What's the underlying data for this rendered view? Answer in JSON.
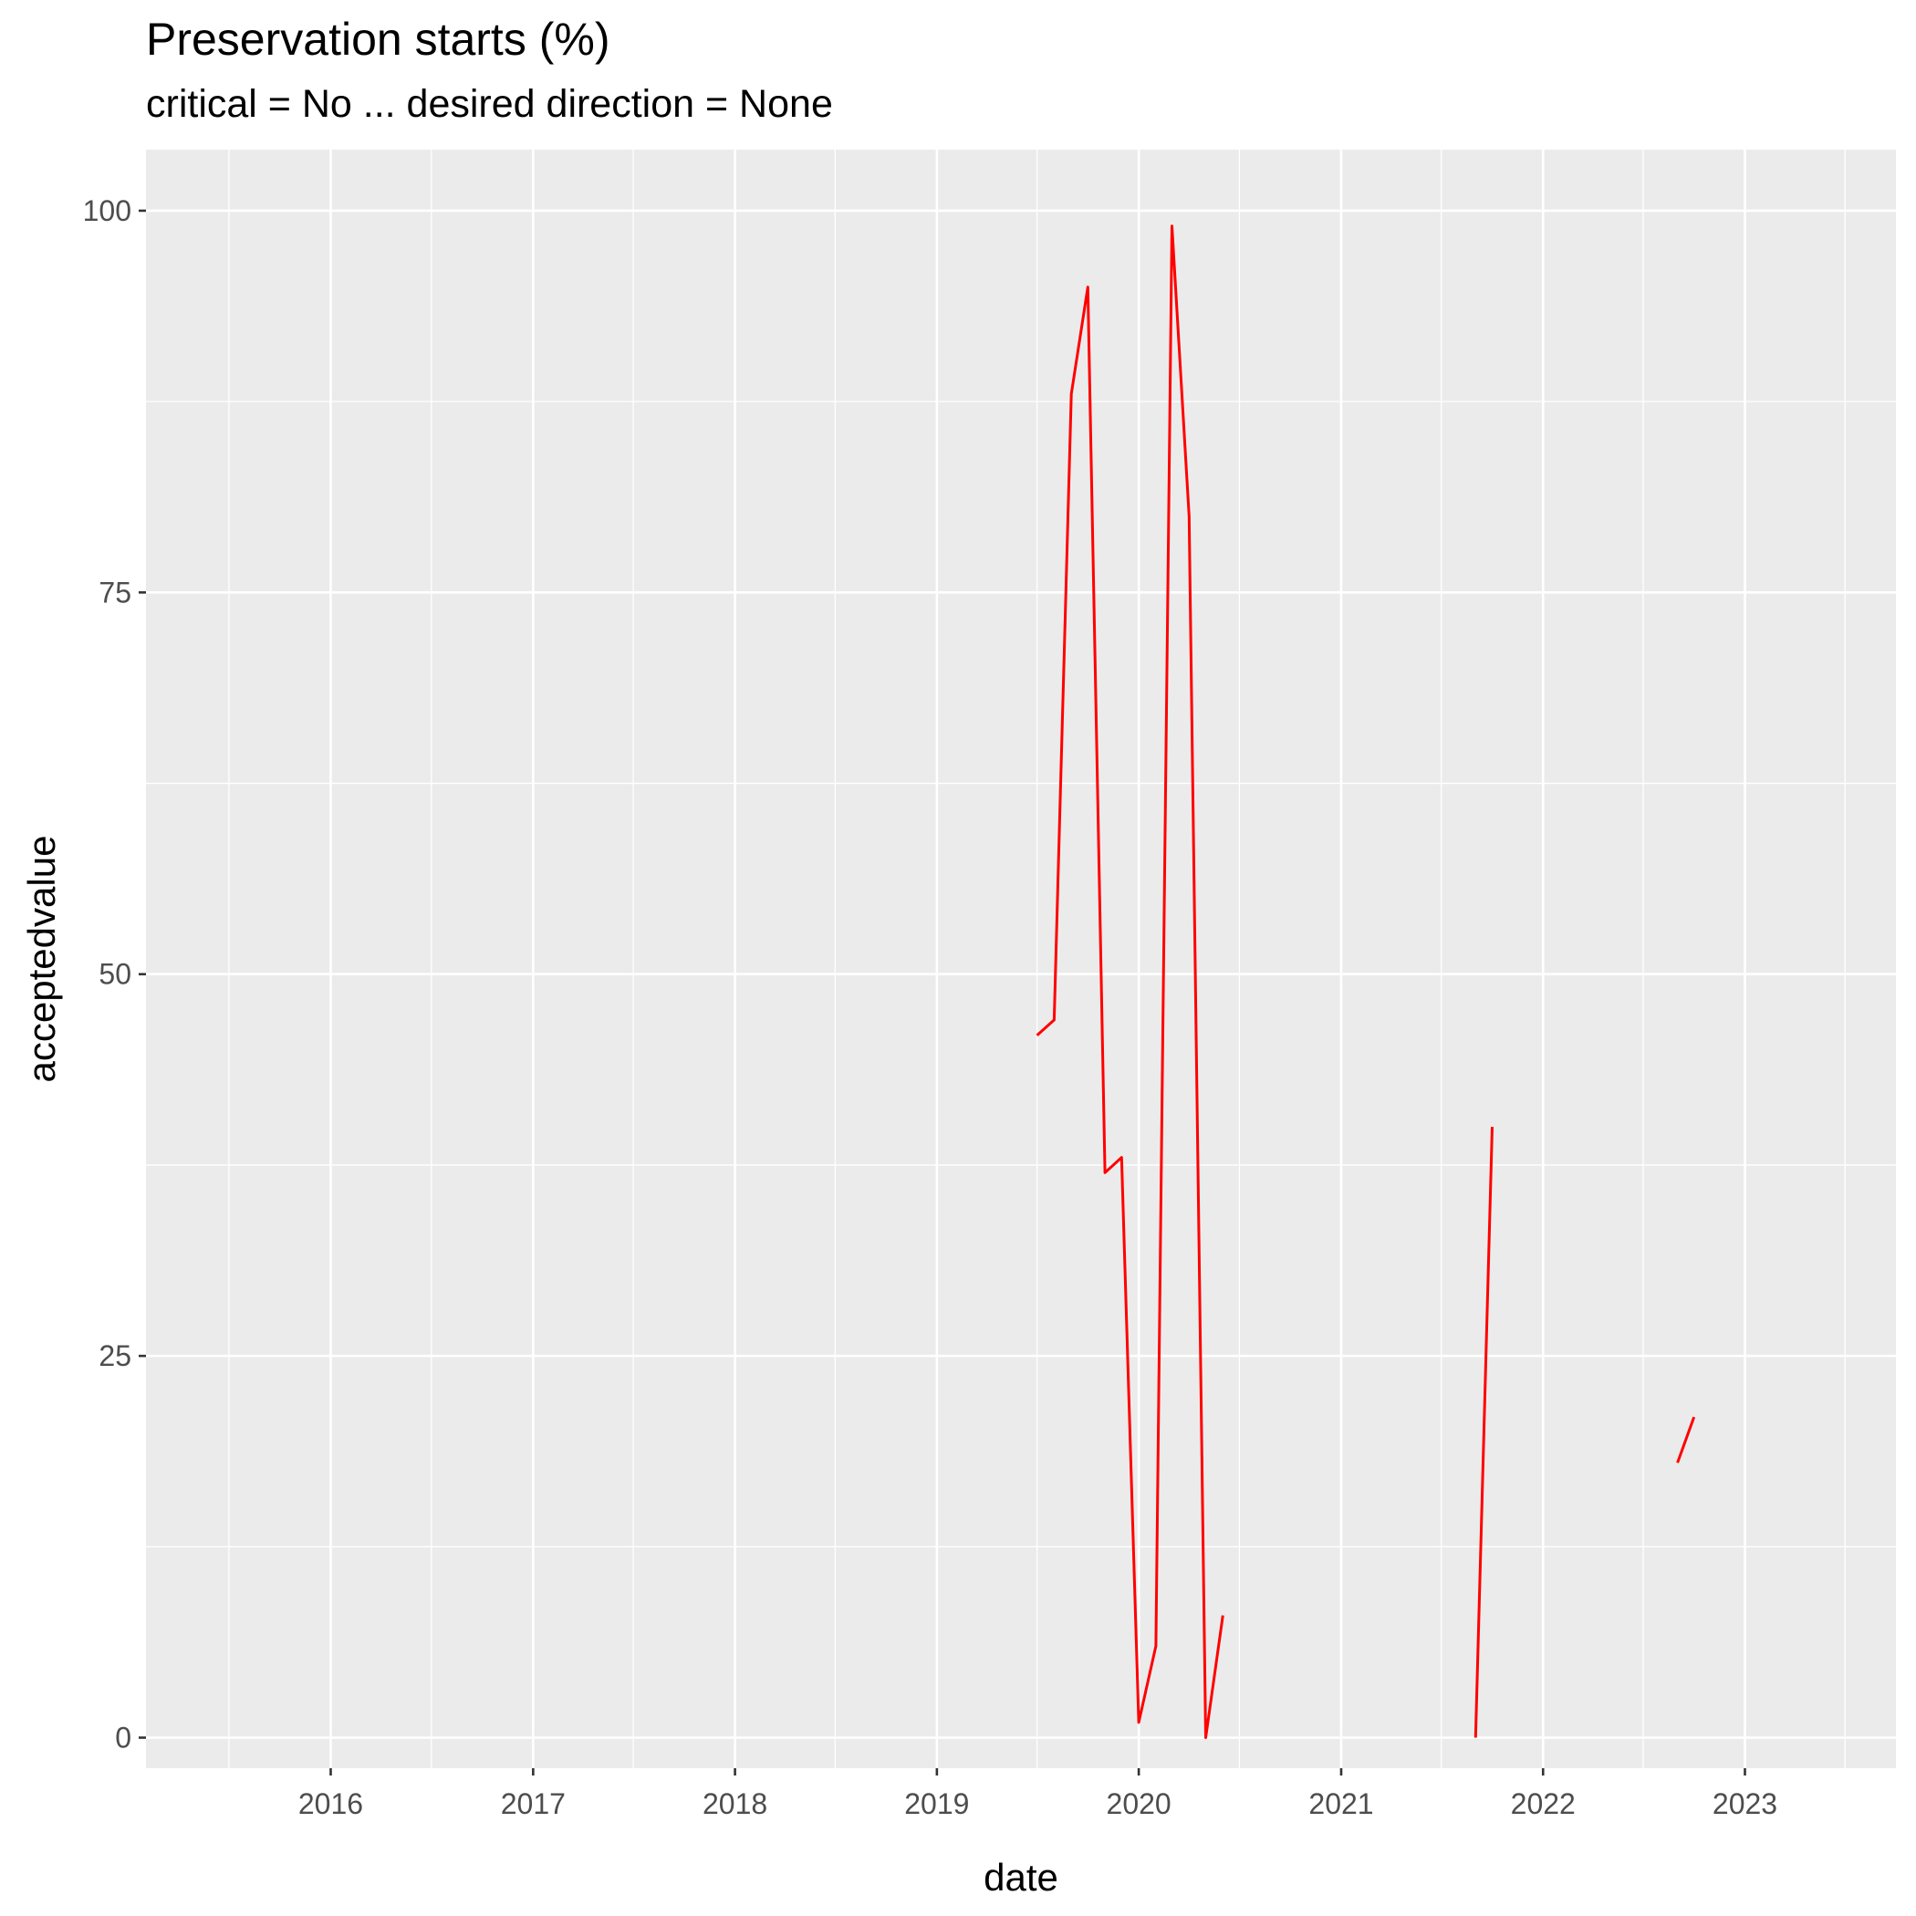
{
  "chart_data": {
    "type": "line",
    "title": "Preservation starts (%)",
    "subtitle": "critical = No ... desired direction = None",
    "xlabel": "date",
    "ylabel": "acceptedvalue",
    "x_range": [
      "2015-02-01",
      "2023-10-01"
    ],
    "ylim": [
      -2,
      104
    ],
    "x_ticks": [
      "2016",
      "2017",
      "2018",
      "2019",
      "2020",
      "2021",
      "2022",
      "2023"
    ],
    "y_ticks": [
      "0",
      "25",
      "50",
      "75",
      "100"
    ],
    "grid": true,
    "legend": "none",
    "colors": {
      "series": "#ff0000",
      "panel": "#ebebeb",
      "grid": "#ffffff"
    },
    "series": [
      {
        "color": "#ff0000",
        "points": [
          {
            "x": "2019-07-01",
            "y": 46
          },
          {
            "x": "2019-08-01",
            "y": 47
          },
          {
            "x": "2019-09-01",
            "y": 88
          },
          {
            "x": "2019-10-01",
            "y": 95
          },
          {
            "x": "2019-11-01",
            "y": 37
          },
          {
            "x": "2019-12-01",
            "y": 38
          },
          {
            "x": "2020-01-01",
            "y": 1
          },
          {
            "x": "2020-02-01",
            "y": 6
          },
          {
            "x": "2020-03-01",
            "y": 99
          },
          {
            "x": "2020-04-01",
            "y": 80
          },
          {
            "x": "2020-05-01",
            "y": 0
          },
          {
            "x": "2020-06-01",
            "y": 8
          },
          {
            "x": "2020-07-01",
            "y": null
          },
          {
            "x": "2021-08-01",
            "y": null
          },
          {
            "x": "2021-09-01",
            "y": 0
          },
          {
            "x": "2021-10-01",
            "y": 40
          },
          {
            "x": "2021-11-01",
            "y": null
          },
          {
            "x": "2022-08-01",
            "y": null
          },
          {
            "x": "2022-09-01",
            "y": 18
          },
          {
            "x": "2022-10-01",
            "y": 21
          }
        ]
      }
    ]
  }
}
